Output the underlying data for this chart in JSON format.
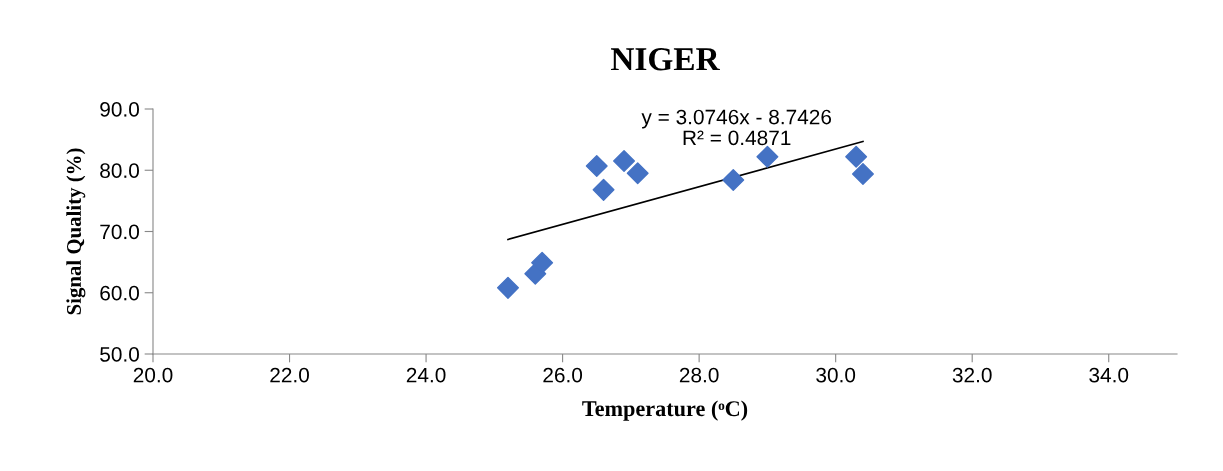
{
  "chart_data": {
    "type": "scatter",
    "title": "NIGER",
    "xlabel": "Temperature (ᵒC)",
    "ylabel": "Signal Quality (%)",
    "xlim": [
      20,
      35
    ],
    "xticks": [
      {
        "value": 20,
        "label": "20.0"
      },
      {
        "value": 22,
        "label": "22.0"
      },
      {
        "value": 24,
        "label": "24.0"
      },
      {
        "value": 26,
        "label": "26.0"
      },
      {
        "value": 28,
        "label": "28.0"
      },
      {
        "value": 30,
        "label": "30.0"
      },
      {
        "value": 32,
        "label": "32.0"
      },
      {
        "value": 34,
        "label": "34.0"
      }
    ],
    "ylim": [
      50,
      90
    ],
    "yticks": [
      {
        "value": 50,
        "label": "50.0"
      },
      {
        "value": 60,
        "label": "60.0"
      },
      {
        "value": 70,
        "label": "70.0"
      },
      {
        "value": 80,
        "label": "80.0"
      },
      {
        "value": 90,
        "label": "90.0"
      }
    ],
    "grid": false,
    "legend": false,
    "series": [
      {
        "marker": "diamond",
        "color": "#4472c4",
        "x": [
          25.2,
          25.6,
          25.7,
          26.5,
          26.6,
          26.9,
          27.1,
          28.5,
          29.0,
          30.3,
          30.4
        ],
        "values": [
          60.8,
          63.1,
          64.9,
          80.7,
          76.8,
          81.5,
          79.5,
          78.4,
          82.2,
          82.2,
          79.4
        ]
      },
      {
        "type": "line",
        "marker": "none",
        "color": "#000000",
        "x": [
          25.2,
          30.4
        ],
        "values": [
          68.7,
          84.7
        ]
      }
    ],
    "annotations": [
      "y = 3.0746x - 8.7426",
      "R² = 0.4871"
    ]
  }
}
